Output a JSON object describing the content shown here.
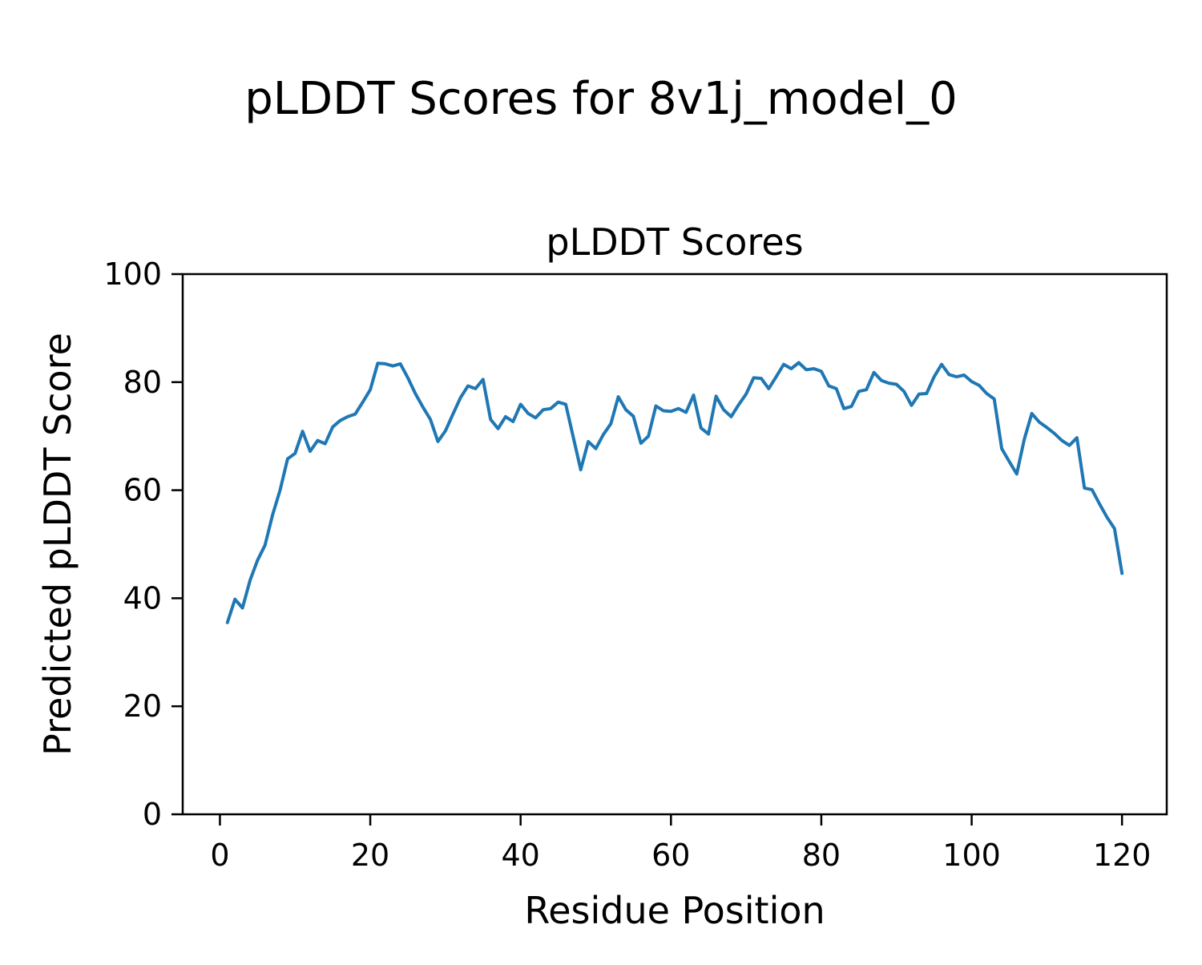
{
  "chart_data": {
    "type": "line",
    "suptitle": "pLDDT Scores for 8v1j_model_0",
    "title": "pLDDT Scores",
    "xlabel": "Residue Position",
    "ylabel": "Predicted pLDDT Score",
    "grid": false,
    "legend": null,
    "line_color": "#1f77b4",
    "line_width": 4,
    "background_color": "#ffffff",
    "text_color": "#000000",
    "xlim": [
      -4.95,
      125.95
    ],
    "ylim": [
      0,
      100
    ],
    "xticks": [
      0,
      20,
      40,
      60,
      80,
      100,
      120
    ],
    "yticks": [
      0,
      20,
      40,
      60,
      80,
      100
    ],
    "x_start": 1,
    "x_label_meaning": "residue index 1..120",
    "values": [
      35.5,
      39.8,
      38.2,
      43.3,
      47.0,
      49.8,
      55.4,
      60.0,
      65.8,
      66.8,
      70.9,
      67.2,
      69.2,
      68.6,
      71.7,
      72.9,
      73.6,
      74.1,
      76.3,
      78.6,
      83.5,
      83.4,
      83.0,
      83.4,
      80.8,
      77.9,
      75.4,
      73.1,
      69.0,
      71.0,
      74.1,
      77.1,
      79.3,
      78.8,
      80.5,
      73.1,
      71.4,
      73.6,
      72.7,
      75.9,
      74.2,
      73.4,
      74.9,
      75.1,
      76.3,
      75.9,
      69.8,
      63.8,
      69.0,
      67.7,
      70.3,
      72.3,
      77.3,
      74.9,
      73.7,
      68.7,
      70.0,
      75.6,
      74.7,
      74.6,
      75.1,
      74.4,
      77.6,
      71.5,
      70.4,
      77.4,
      74.9,
      73.6,
      75.8,
      77.8,
      80.8,
      80.7,
      78.8,
      81.0,
      83.3,
      82.5,
      83.6,
      82.3,
      82.5,
      82.0,
      79.3,
      78.8,
      75.1,
      75.5,
      78.3,
      78.6,
      81.8,
      80.3,
      79.8,
      79.6,
      78.3,
      75.7,
      77.8,
      77.9,
      81.0,
      83.3,
      81.4,
      81.0,
      81.3,
      80.1,
      79.4,
      77.9,
      76.9,
      67.7,
      65.3,
      63.0,
      69.4,
      74.2,
      72.6,
      71.6,
      70.5,
      69.2,
      68.3,
      69.7,
      60.4,
      60.1,
      57.5,
      55.0,
      52.9,
      44.6
    ]
  }
}
